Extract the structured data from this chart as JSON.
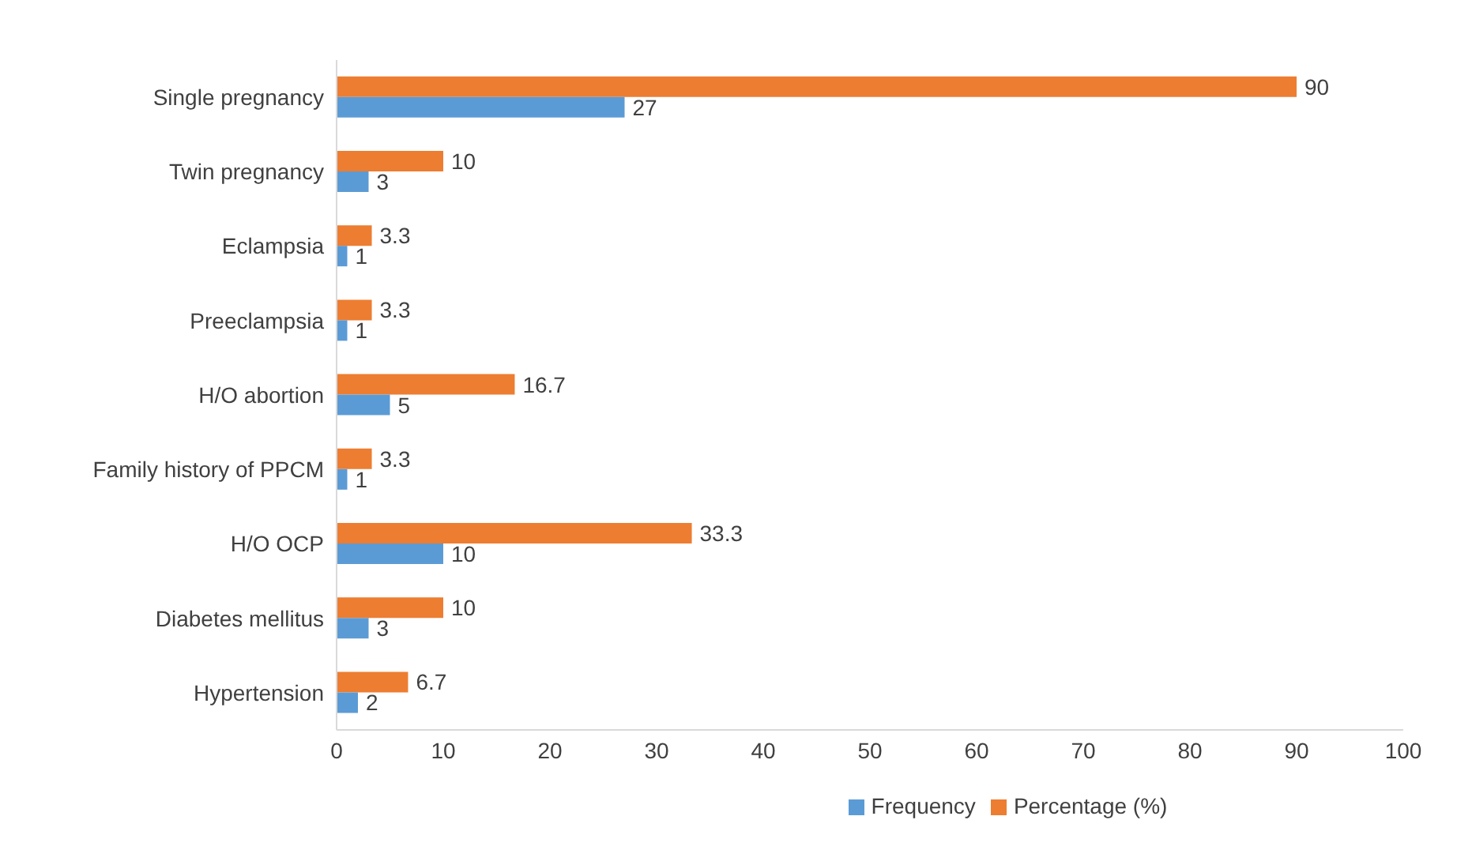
{
  "chart_data": {
    "type": "bar",
    "orientation": "horizontal",
    "categories": [
      "Single pregnancy",
      "Twin pregnancy",
      "Eclampsia",
      "Preeclampsia",
      "H/O abortion",
      "Family history of PPCM",
      "H/O OCP",
      "Diabetes mellitus",
      "Hypertension"
    ],
    "series": [
      {
        "name": "Percentage (%)",
        "color": "#ed7d31",
        "values": [
          90,
          10,
          3.3,
          3.3,
          16.7,
          3.3,
          33.3,
          10,
          6.7
        ]
      },
      {
        "name": "Frequency",
        "color": "#5b9bd5",
        "values": [
          27,
          3,
          1,
          1,
          5,
          1,
          10,
          3,
          2
        ]
      }
    ],
    "xlim": [
      0,
      100
    ],
    "xticks": [
      0,
      10,
      20,
      30,
      40,
      50,
      60,
      70,
      80,
      90,
      100
    ],
    "data_labels": true,
    "legend": "bottom",
    "grid": false
  }
}
